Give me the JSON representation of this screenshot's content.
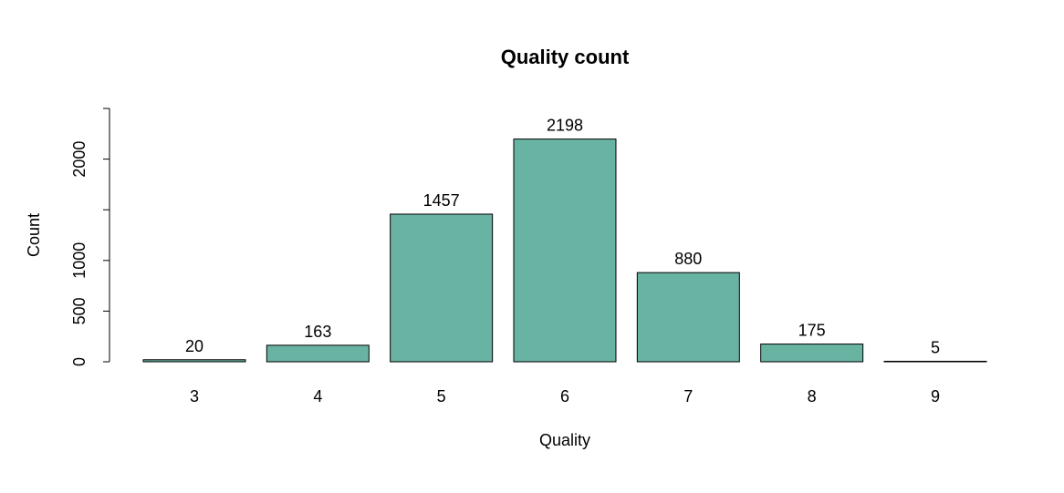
{
  "chart_data": {
    "type": "bar",
    "title": "Quality count",
    "xlabel": "Quality",
    "ylabel": "Count",
    "categories": [
      "3",
      "4",
      "5",
      "6",
      "7",
      "8",
      "9"
    ],
    "values": [
      20,
      163,
      1457,
      2198,
      880,
      175,
      5
    ],
    "data_labels": [
      "20",
      "163",
      "1457",
      "2198",
      "880",
      "175",
      "5"
    ],
    "ylim": [
      0,
      2500
    ],
    "yticks": [
      0,
      500,
      1000,
      2000
    ],
    "ytick_labels": [
      "0",
      "500",
      "1000",
      "2000"
    ],
    "grid": false,
    "bar_color": "#69b3a2"
  }
}
